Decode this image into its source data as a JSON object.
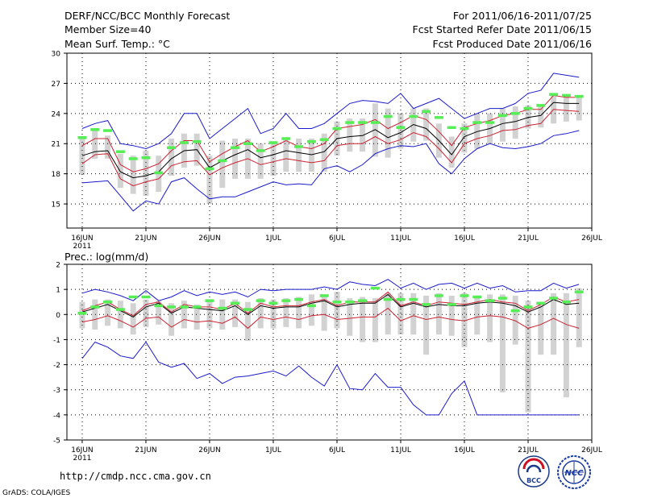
{
  "header": {
    "title": "DERF/NCC/BCC Monthly Forecast",
    "member_size": "Member Size=40",
    "variable_temp": "Mean Surf. Temp.: °C",
    "period": "For 2011/06/16-2011/07/25",
    "fcst_started": "Fcst Started Refer Date 2011/06/15",
    "fcst_produced": "Fcst Produced Date 2011/06/16"
  },
  "footer": {
    "url": "http://cmdp.ncc.cma.gov.cn",
    "grads": "GrADS: COLA/IGES",
    "bcc_logo": "BCC",
    "ncc_logo": "NCC"
  },
  "colors": {
    "ens_mean": "#000000",
    "spread": "#cc2233",
    "envelope": "#1a1acc",
    "obs_bar": "#55ee55",
    "box": "#d2d2d2",
    "grid": "#000000"
  },
  "chart_data": [
    {
      "type": "line",
      "title": "Mean Surf. Temp.: °C",
      "x_ticks": [
        0,
        5,
        10,
        15,
        20,
        25,
        30,
        35,
        40
      ],
      "x_tick_labels": [
        "16JUN",
        "21JUN",
        "26JUN",
        "1JUL",
        "6JUL",
        "11JUL",
        "16JUL",
        "21JUL",
        "26JUL"
      ],
      "year_label": "2011",
      "ylim": [
        12.6,
        30
      ],
      "y_ticks": [
        15,
        18,
        21,
        24,
        27,
        30
      ],
      "y_tick_labels": [
        "15",
        "18",
        "21",
        "24",
        "27",
        "30"
      ],
      "x": [
        0,
        1,
        2,
        3,
        4,
        5,
        6,
        7,
        8,
        9,
        10,
        11,
        12,
        13,
        14,
        15,
        16,
        17,
        18,
        19,
        20,
        21,
        22,
        23,
        24,
        25,
        26,
        27,
        28,
        29,
        30,
        31,
        32,
        33,
        34,
        35,
        36,
        37,
        38,
        39
      ],
      "series": [
        {
          "name": "max",
          "values": [
            22.5,
            23,
            23.3,
            21,
            20.8,
            20.5,
            21,
            22,
            24,
            24,
            21.5,
            22.5,
            23.5,
            24.5,
            22,
            22.5,
            24,
            22.5,
            22.5,
            23,
            24,
            25,
            25.3,
            25.2,
            25,
            26,
            24.5,
            25,
            25.5,
            24.5,
            23.5,
            24,
            24.5,
            24.5,
            25,
            26,
            26.3,
            28,
            27.8,
            27.6
          ]
        },
        {
          "name": "upper",
          "values": [
            20.8,
            21.5,
            21.5,
            18.9,
            18.2,
            18.5,
            19,
            20.3,
            21.3,
            21.3,
            19.2,
            20,
            20.7,
            21.3,
            20.2,
            20.7,
            21.3,
            20.7,
            20.5,
            21,
            22.5,
            22.7,
            22.9,
            23.4,
            22.5,
            23.1,
            23.8,
            23.4,
            22.2,
            20.8,
            22.6,
            23,
            23.3,
            23.8,
            24,
            24.4,
            24.4,
            25.8,
            25.6,
            25.6
          ]
        },
        {
          "name": "mean",
          "values": [
            19.8,
            20.2,
            20.3,
            18.2,
            17.6,
            17.8,
            18.2,
            19.5,
            20.3,
            20.4,
            18.6,
            19.3,
            19.9,
            20.4,
            19.6,
            19.9,
            20.3,
            20.1,
            19.9,
            20.2,
            21.5,
            21.7,
            21.8,
            22.4,
            21.6,
            22.1,
            22.9,
            22.5,
            21.3,
            19.9,
            21.7,
            22.2,
            22.5,
            23,
            23.2,
            23.6,
            23.8,
            25.1,
            25,
            25
          ]
        },
        {
          "name": "lower",
          "values": [
            19,
            19.9,
            20,
            17.5,
            16.8,
            17.2,
            17.5,
            18.8,
            19.2,
            19.3,
            17.9,
            18.6,
            19.1,
            19.5,
            18.9,
            19.2,
            19.5,
            19.3,
            19.1,
            19.3,
            20.8,
            21,
            21,
            21.7,
            21,
            21.4,
            22.1,
            21.7,
            20.5,
            19.1,
            21,
            21.5,
            21.8,
            22.3,
            22.4,
            22.8,
            23,
            24.4,
            24.3,
            24.2
          ]
        },
        {
          "name": "min",
          "values": [
            17.1,
            17.2,
            17.3,
            15.8,
            14.3,
            15.3,
            15,
            17.2,
            17.6,
            16.5,
            15.5,
            15.7,
            15.7,
            16.2,
            16.7,
            17.2,
            16.9,
            17,
            16.9,
            18.5,
            18.8,
            18.2,
            18.9,
            20,
            20.5,
            20.8,
            20.7,
            21,
            19,
            18,
            19.5,
            20.5,
            21,
            20.6,
            20.5,
            20.7,
            21,
            21.8,
            22,
            22.3
          ]
        },
        {
          "name": "obs",
          "values": [
            21.6,
            22.4,
            22.3,
            20.2,
            19.5,
            19.6,
            18.1,
            20.6,
            21.1,
            21.2,
            18.5,
            19.3,
            20.6,
            21,
            20.3,
            21.1,
            21.5,
            20.7,
            21.2,
            21.4,
            22.5,
            23.1,
            23.1,
            23.1,
            23.7,
            22.6,
            23.7,
            24.2,
            23.6,
            22.6,
            22.5,
            23.1,
            23.1,
            23.8,
            24,
            24.5,
            24.8,
            25.9,
            25.8,
            25.7
          ]
        },
        {
          "name": "box_top",
          "values": [
            21.7,
            22.3,
            21.8,
            20,
            19.8,
            20.3,
            19.8,
            21.5,
            22,
            22,
            19.8,
            21.3,
            21.5,
            21.5,
            21,
            21.2,
            21.5,
            21.5,
            21.5,
            22,
            23.2,
            23.5,
            23.5,
            25,
            24.5,
            24,
            24.5,
            24.5,
            23,
            21.7,
            23,
            24,
            24,
            24.5,
            24.7,
            24.8,
            24.8,
            26,
            25.7,
            25.6
          ]
        },
        {
          "name": "box_bottom",
          "values": [
            17.9,
            19.5,
            19.5,
            16.6,
            16,
            15.8,
            16.2,
            17.8,
            18.6,
            18.8,
            15,
            16.6,
            17.5,
            17.5,
            17.5,
            17.8,
            18.2,
            18.2,
            18.2,
            18.2,
            19.8,
            20.2,
            20.2,
            19.7,
            19.6,
            20.5,
            21.2,
            21.3,
            19.6,
            18.6,
            20.1,
            20.5,
            21,
            21.2,
            21.5,
            22.5,
            22.6,
            23,
            23.2,
            23.3
          ]
        }
      ]
    },
    {
      "type": "line",
      "title": "Prec.: log(mm/d)",
      "x_ticks": [
        0,
        5,
        10,
        15,
        20,
        25,
        30,
        35,
        40
      ],
      "x_tick_labels": [
        "16JUN",
        "21JUN",
        "26JUN",
        "1JUL",
        "6JUL",
        "11JUL",
        "16JUL",
        "21JUL",
        "26JUL"
      ],
      "year_label": "2011",
      "ylim": [
        -5,
        2
      ],
      "y_ticks": [
        -5,
        -4,
        -3,
        -2,
        -1,
        0,
        1,
        2
      ],
      "y_tick_labels": [
        "-5",
        "-4",
        "-3",
        "-2",
        "-1",
        "0",
        "1",
        "2"
      ],
      "x": [
        0,
        1,
        2,
        3,
        4,
        5,
        6,
        7,
        8,
        9,
        10,
        11,
        12,
        13,
        14,
        15,
        16,
        17,
        18,
        19,
        20,
        21,
        22,
        23,
        24,
        25,
        26,
        27,
        28,
        29,
        30,
        31,
        32,
        33,
        34,
        35,
        36,
        37,
        38,
        39
      ],
      "series": [
        {
          "name": "max",
          "values": [
            0.85,
            1,
            0.9,
            0.75,
            0.55,
            0.95,
            0.55,
            0.7,
            0.95,
            0.75,
            0.9,
            0.8,
            0.9,
            0.7,
            1,
            0.95,
            1,
            1,
            1,
            1.1,
            1,
            1.3,
            1.2,
            1.15,
            1.4,
            1.05,
            1.25,
            1,
            1.2,
            1.25,
            1.05,
            1.25,
            1.05,
            1.15,
            0.9,
            0.95,
            0.95,
            1.25,
            1.05,
            1.2
          ]
        },
        {
          "name": "upper",
          "values": [
            0.15,
            0.35,
            0.5,
            0.2,
            -0.05,
            0.4,
            0.5,
            0.1,
            0.4,
            0.3,
            0.3,
            0.2,
            0.45,
            0.05,
            0.45,
            0.3,
            0.35,
            0.35,
            0.5,
            0.6,
            0.35,
            0.5,
            0.5,
            0.5,
            0.9,
            0.35,
            0.5,
            0.35,
            0.5,
            0.45,
            0.4,
            0.5,
            0.6,
            0.5,
            0.45,
            0.15,
            0.4,
            0.7,
            0.5,
            0.6
          ]
        },
        {
          "name": "mean",
          "values": [
            0.1,
            0.25,
            0.4,
            0.15,
            -0.1,
            0.3,
            0.45,
            0.05,
            0.3,
            0.25,
            0.2,
            0.15,
            0.35,
            0,
            0.35,
            0.25,
            0.3,
            0.3,
            0.45,
            0.55,
            0.3,
            0.4,
            0.45,
            0.45,
            0.8,
            0.3,
            0.45,
            0.3,
            0.4,
            0.35,
            0.35,
            0.45,
            0.5,
            0.45,
            0.35,
            0.1,
            0.3,
            0.6,
            0.4,
            0.45
          ]
        },
        {
          "name": "lower",
          "values": [
            -0.3,
            -0.2,
            -0.05,
            -0.25,
            -0.5,
            -0.15,
            -0.1,
            -0.5,
            -0.2,
            -0.3,
            -0.25,
            -0.35,
            -0.1,
            -0.55,
            -0.1,
            -0.2,
            -0.1,
            -0.2,
            -0.05,
            0,
            -0.2,
            -0.15,
            -0.1,
            -0.1,
            0.25,
            -0.25,
            -0.05,
            -0.2,
            -0.1,
            -0.2,
            -0.25,
            -0.1,
            -0.05,
            -0.1,
            -0.25,
            -0.55,
            -0.4,
            -0.15,
            -0.4,
            -0.55
          ]
        },
        {
          "name": "min",
          "values": [
            -1.75,
            -1.1,
            -1.3,
            -1.65,
            -1.75,
            -1.1,
            -1.9,
            -2.1,
            -1.95,
            -2.55,
            -2.35,
            -2.75,
            -2.5,
            -2.45,
            -2.35,
            -2.25,
            -2.45,
            -2.05,
            -2.5,
            -2.85,
            -2,
            -2.95,
            -3,
            -2.35,
            -2.9,
            -2.9,
            -3.6,
            -4,
            -4,
            -3.15,
            -2.65,
            -4,
            -4,
            -4,
            -4,
            -4,
            -4,
            -4,
            -4,
            -4
          ]
        },
        {
          "name": "obs",
          "values": [
            0.05,
            0.3,
            0.5,
            0.2,
            0.7,
            0.7,
            0.35,
            0.3,
            0.3,
            0.3,
            0.55,
            0.25,
            0.45,
            0.2,
            0.55,
            0.45,
            0.55,
            0.6,
            0.35,
            0.75,
            0.5,
            0.5,
            0.55,
            1.05,
            0.6,
            0.6,
            0.6,
            0.4,
            0.75,
            0.4,
            0.75,
            0.7,
            0.55,
            0.65,
            0.15,
            0.3,
            0.45,
            0.65,
            0.5,
            0.9
          ]
        },
        {
          "name": "box_top",
          "values": [
            0.5,
            0.6,
            0.6,
            0.55,
            0.45,
            0.6,
            0.55,
            0.45,
            0.55,
            0.4,
            0.6,
            0.6,
            0.6,
            0.5,
            0.65,
            0.6,
            0.65,
            0.7,
            0.8,
            0.8,
            0.9,
            0.65,
            0.7,
            0.65,
            0.85,
            0.85,
            0.85,
            0.75,
            0.85,
            0.75,
            0.85,
            0.75,
            0.8,
            0.8,
            0.75,
            0.55,
            0.5,
            0.85,
            0.85,
            1.05
          ]
        },
        {
          "name": "box_bottom",
          "values": [
            -0.55,
            -0.6,
            -0.45,
            -0.55,
            -0.8,
            -0.5,
            -0.4,
            -0.85,
            -0.55,
            -0.6,
            -0.55,
            -0.6,
            -0.5,
            -1.05,
            -0.55,
            -0.55,
            -0.5,
            -0.55,
            -0.45,
            -0.65,
            -0.55,
            -0.85,
            -1.1,
            -1.1,
            -0.8,
            -0.8,
            -0.8,
            -1.6,
            -0.8,
            -0.85,
            -1.3,
            -0.8,
            -1.1,
            -3.1,
            -1.2,
            -3.9,
            -1.6,
            -1.6,
            -3.3,
            -1.3
          ]
        }
      ]
    }
  ]
}
